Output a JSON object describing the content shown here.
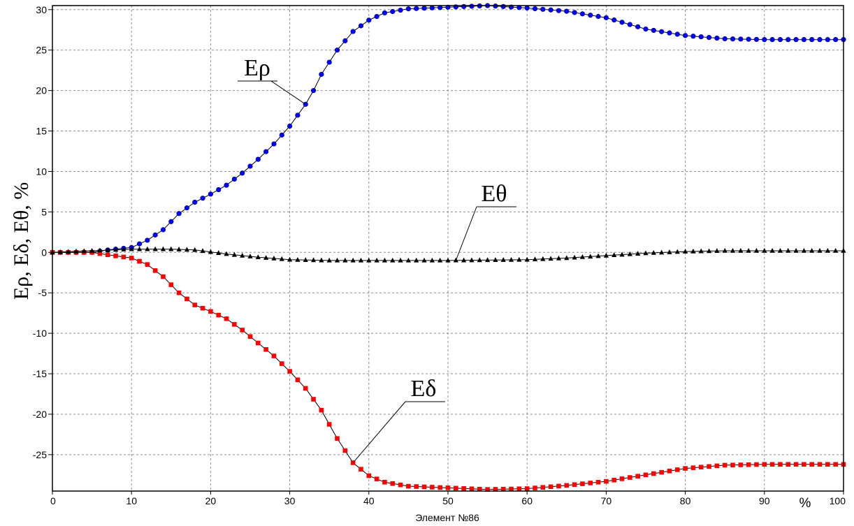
{
  "chart_data": {
    "type": "line",
    "title": "",
    "xlabel": "Элемент №86",
    "x_unit": "%",
    "ylabel": "Eρ, Eδ, Eθ, %",
    "xlim": [
      0,
      100
    ],
    "ylim": [
      -29.5,
      30.5
    ],
    "x_ticks": [
      0,
      10,
      20,
      30,
      40,
      50,
      60,
      70,
      80,
      90,
      100
    ],
    "y_ticks": [
      30,
      25,
      20,
      15,
      10,
      5,
      0,
      -5,
      -10,
      -15,
      -20,
      -25
    ],
    "grid": true,
    "annotations": [
      {
        "text": "Eρ",
        "series": "Eρ",
        "x": 32,
        "y": 18.3
      },
      {
        "text": "Eθ",
        "series": "Eθ",
        "x": 51,
        "y": -1.0
      },
      {
        "text": "Eδ",
        "series": "Eδ",
        "x": 38,
        "y": -26.0
      }
    ],
    "series": [
      {
        "name": "Eρ",
        "color": "#0000ff",
        "marker": "circle",
        "points": [
          [
            0,
            0
          ],
          [
            5,
            0
          ],
          [
            7,
            0.3
          ],
          [
            10,
            0.6
          ],
          [
            12,
            1.5
          ],
          [
            14,
            2.8
          ],
          [
            16,
            4.8
          ],
          [
            18,
            6.2
          ],
          [
            20,
            7.2
          ],
          [
            22,
            8.3
          ],
          [
            24,
            9.8
          ],
          [
            26,
            11.5
          ],
          [
            28,
            13.4
          ],
          [
            30,
            15.6
          ],
          [
            32,
            18.3
          ],
          [
            33,
            20.0
          ],
          [
            34,
            22.0
          ],
          [
            36,
            25.0
          ],
          [
            38,
            27.3
          ],
          [
            40,
            28.7
          ],
          [
            42,
            29.6
          ],
          [
            45,
            30.1
          ],
          [
            50,
            30.3
          ],
          [
            55,
            30.5
          ],
          [
            60,
            30.2
          ],
          [
            65,
            29.8
          ],
          [
            70,
            29.0
          ],
          [
            75,
            27.6
          ],
          [
            80,
            26.8
          ],
          [
            85,
            26.4
          ],
          [
            90,
            26.3
          ],
          [
            95,
            26.3
          ],
          [
            100,
            26.3
          ]
        ]
      },
      {
        "name": "Eδ",
        "color": "#ff0000",
        "marker": "square",
        "points": [
          [
            0,
            0
          ],
          [
            5,
            0
          ],
          [
            7,
            -0.3
          ],
          [
            10,
            -0.7
          ],
          [
            12,
            -1.5
          ],
          [
            14,
            -3.0
          ],
          [
            16,
            -5.0
          ],
          [
            18,
            -6.5
          ],
          [
            20,
            -7.3
          ],
          [
            22,
            -8.2
          ],
          [
            24,
            -9.6
          ],
          [
            26,
            -11.2
          ],
          [
            28,
            -12.8
          ],
          [
            30,
            -14.7
          ],
          [
            32,
            -16.8
          ],
          [
            34,
            -19.5
          ],
          [
            36,
            -23.0
          ],
          [
            38,
            -26.0
          ],
          [
            40,
            -27.6
          ],
          [
            42,
            -28.4
          ],
          [
            45,
            -28.9
          ],
          [
            50,
            -29.1
          ],
          [
            55,
            -29.3
          ],
          [
            60,
            -29.2
          ],
          [
            65,
            -28.8
          ],
          [
            70,
            -28.3
          ],
          [
            75,
            -27.5
          ],
          [
            80,
            -26.7
          ],
          [
            85,
            -26.3
          ],
          [
            90,
            -26.2
          ],
          [
            95,
            -26.2
          ],
          [
            100,
            -26.2
          ]
        ]
      },
      {
        "name": "Eθ",
        "color": "#000000",
        "marker": "triangle",
        "points": [
          [
            0,
            0
          ],
          [
            5,
            0.2
          ],
          [
            10,
            0.4
          ],
          [
            15,
            0.4
          ],
          [
            18,
            0.3
          ],
          [
            22,
            -0.2
          ],
          [
            26,
            -0.6
          ],
          [
            30,
            -0.9
          ],
          [
            35,
            -1.0
          ],
          [
            40,
            -1.0
          ],
          [
            50,
            -1.0
          ],
          [
            60,
            -0.9
          ],
          [
            65,
            -0.7
          ],
          [
            70,
            -0.4
          ],
          [
            75,
            -0.1
          ],
          [
            80,
            0.1
          ],
          [
            85,
            0.2
          ],
          [
            90,
            0.2
          ],
          [
            100,
            0.2
          ]
        ]
      }
    ]
  }
}
